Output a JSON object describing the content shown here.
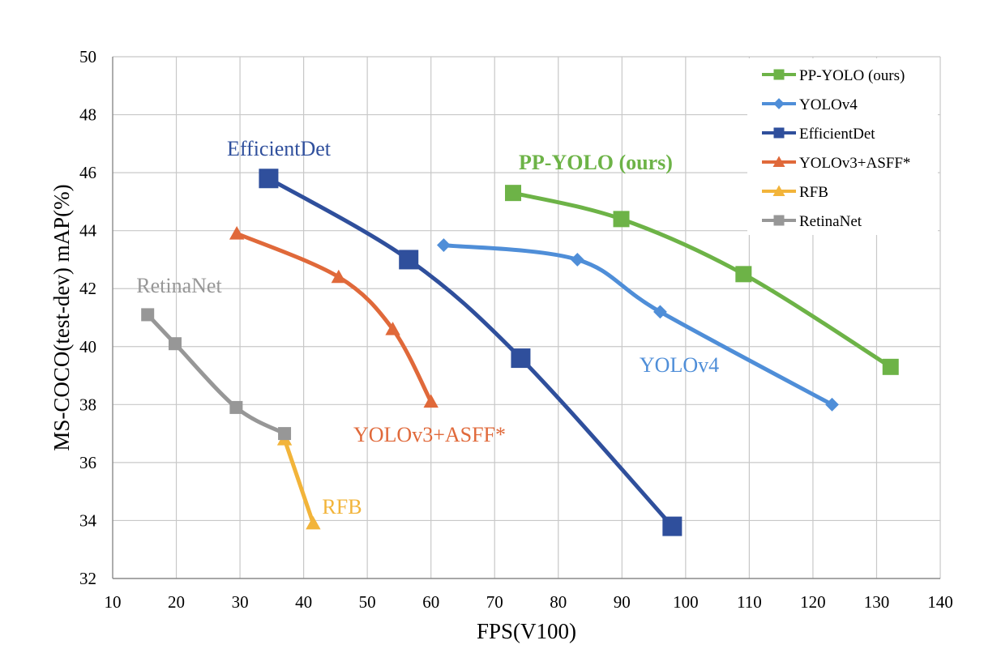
{
  "chart_data": {
    "type": "line",
    "title": "",
    "xlabel": "FPS(V100)",
    "ylabel": "MS-COCO(test-dev) mAP(%)",
    "xlim": [
      10,
      140
    ],
    "ylim": [
      32,
      50
    ],
    "x_ticks": [
      10,
      20,
      30,
      40,
      50,
      60,
      70,
      80,
      90,
      100,
      110,
      120,
      130,
      140
    ],
    "y_ticks": [
      32,
      34,
      36,
      38,
      40,
      42,
      44,
      46,
      48,
      50
    ],
    "grid": true,
    "legend_position": "top-right",
    "series": [
      {
        "name": "PP-YOLO (ours)",
        "color": "#6db347",
        "marker": "square",
        "marker_size": "medium",
        "points": [
          [
            72.9,
            45.3
          ],
          [
            89.9,
            44.4
          ],
          [
            109.1,
            42.5
          ],
          [
            132.2,
            39.3
          ]
        ],
        "annotation": "PP-YOLO (ours)",
        "annotation_bold": true
      },
      {
        "name": "YOLOv4",
        "color": "#4f8ed8",
        "marker": "diamond",
        "marker_size": "small",
        "points": [
          [
            62,
            43.5
          ],
          [
            83,
            43.0
          ],
          [
            96,
            41.2
          ],
          [
            123,
            38.0
          ]
        ],
        "annotation": "YOLOv4",
        "annotation_bold": false
      },
      {
        "name": "EfficientDet",
        "color": "#2f4f9c",
        "marker": "square",
        "marker_size": "large",
        "points": [
          [
            34.5,
            45.8
          ],
          [
            56.5,
            43.0
          ],
          [
            74.1,
            39.6
          ],
          [
            97.9,
            33.8
          ]
        ],
        "annotation": "EfficientDet",
        "annotation_bold": false
      },
      {
        "name": "YOLOv3+ASFF*",
        "color": "#e0693a",
        "marker": "triangle",
        "marker_size": "small",
        "points": [
          [
            29.5,
            43.9
          ],
          [
            45.5,
            42.4
          ],
          [
            54,
            40.6
          ],
          [
            60,
            38.1
          ]
        ],
        "annotation": "YOLOv3+ASFF*",
        "annotation_bold": false
      },
      {
        "name": "RFB",
        "color": "#f2b43a",
        "marker": "triangle",
        "marker_size": "small",
        "points": [
          [
            37,
            36.8
          ],
          [
            41.5,
            33.9
          ]
        ],
        "annotation": "RFB",
        "annotation_bold": false
      },
      {
        "name": "RetinaNet",
        "color": "#979797",
        "marker": "square",
        "marker_size": "small",
        "points": [
          [
            15.5,
            41.1
          ],
          [
            19.8,
            40.1
          ],
          [
            29.4,
            37.9
          ],
          [
            37,
            37.0
          ]
        ],
        "annotation": "RetinaNet",
        "annotation_bold": false
      }
    ]
  }
}
